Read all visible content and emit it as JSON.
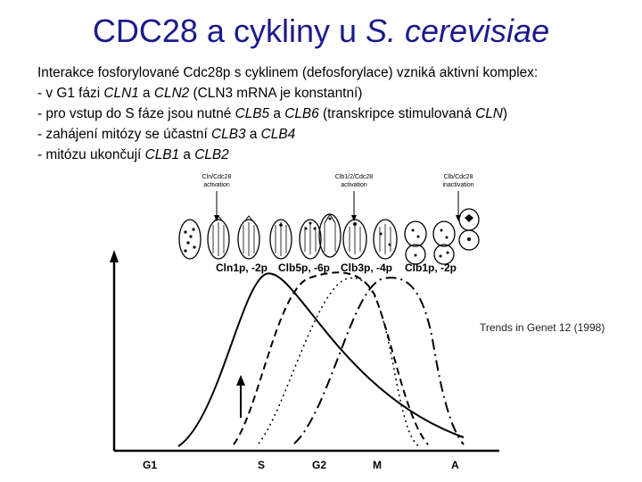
{
  "slide": {
    "title_main": "CDC28 a cykliny u ",
    "title_species": "S. cerevisiae",
    "lines": [
      [
        {
          "t": "Interakce fosforylované Cdc28p s cyklinem (defosforylace) vzniká aktivní komplex:",
          "i": false
        }
      ],
      [
        {
          "t": "- v G1 fázi ",
          "i": false
        },
        {
          "t": "CLN1",
          "i": true
        },
        {
          "t": " a ",
          "i": false
        },
        {
          "t": "CLN2",
          "i": true
        },
        {
          "t": " (CLN3 mRNA je konstantní)",
          "i": false
        }
      ],
      [
        {
          "t": "- pro vstup do S fáze jsou nutné ",
          "i": false
        },
        {
          "t": "CLB5",
          "i": true
        },
        {
          "t": " a ",
          "i": false
        },
        {
          "t": "CLB6",
          "i": true
        },
        {
          "t": " (transkripce stimulovaná ",
          "i": false
        },
        {
          "t": "CLN",
          "i": true
        },
        {
          "t": ")",
          "i": false
        }
      ],
      [
        {
          "t": "- zahájení mitózy se účastní ",
          "i": false
        },
        {
          "t": "CLB3",
          "i": true
        },
        {
          "t": " a ",
          "i": false
        },
        {
          "t": "CLB4",
          "i": true
        }
      ],
      [
        {
          "t": "- mitózu ukončují ",
          "i": false
        },
        {
          "t": "CLB1",
          "i": true
        },
        {
          "t": " a ",
          "i": false
        },
        {
          "t": "CLB2",
          "i": true
        }
      ]
    ],
    "credit": "Trends in Genet 12 (1998)"
  },
  "figure": {
    "annotations": [
      {
        "line1": "Cln/Cdc28",
        "line2": "activation"
      },
      {
        "line1": "Clb1/2/Cdc28",
        "line2": "activation"
      },
      {
        "line1": "Clb/Cdc28",
        "line2": "inactivation"
      }
    ],
    "cyclin_labels": [
      "Cln1p, -2p",
      "Clb5p, -6p",
      "Clb3p, -4p",
      "Clb1p, -2p"
    ],
    "phases": [
      "G1",
      "S",
      "G2",
      "M",
      "A"
    ]
  }
}
